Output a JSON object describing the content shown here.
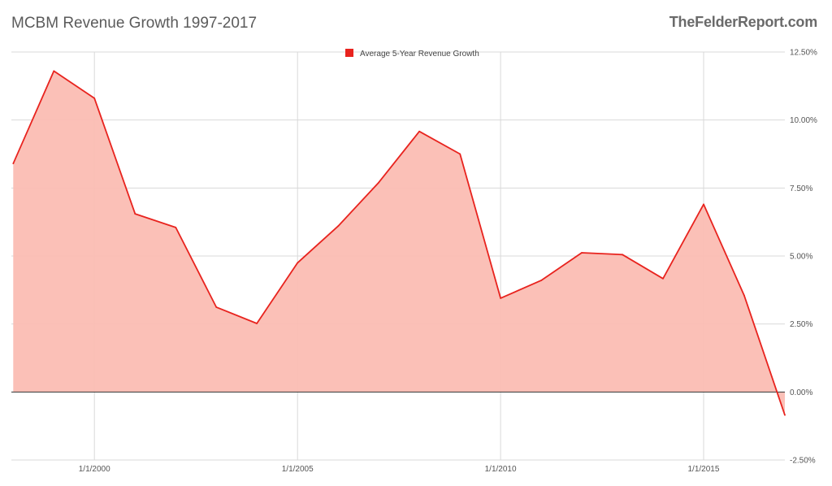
{
  "header": {
    "title": "MCBM Revenue Growth 1997-2017",
    "brand": "TheFelderReport.com"
  },
  "colors": {
    "line": "#e8231e",
    "fill": "#fbbdb3",
    "grid": "#d9d9d9",
    "zero_line": "#333333"
  },
  "chart_data": {
    "type": "area",
    "title": "MCBM Revenue Growth 1997-2017",
    "xlabel": "",
    "ylabel": "",
    "legend_position": "top-center",
    "grid": true,
    "x_tick_labels": [
      "1/1/2000",
      "1/1/2005",
      "1/1/2010",
      "1/1/2015"
    ],
    "y_tick_labels": [
      "12.50%",
      "10.00%",
      "7.50%",
      "5.00%",
      "2.50%",
      "0.00%",
      "-2.50%"
    ],
    "ylim": [
      -2.5,
      12.5
    ],
    "x": [
      "1998-01-01",
      "1999-01-01",
      "2000-01-01",
      "2001-01-01",
      "2002-01-01",
      "2003-01-01",
      "2004-01-01",
      "2005-01-01",
      "2006-01-01",
      "2007-01-01",
      "2008-01-01",
      "2009-01-01",
      "2010-01-01",
      "2011-01-01",
      "2012-01-01",
      "2013-01-01",
      "2014-01-01",
      "2015-01-01",
      "2016-01-01",
      "2017-01-01"
    ],
    "series": [
      {
        "name": "Average 5-Year Revenue Growth",
        "values": [
          8.4,
          11.8,
          10.8,
          6.55,
          6.05,
          3.12,
          2.52,
          4.75,
          6.1,
          7.7,
          9.58,
          8.75,
          3.45,
          4.1,
          5.12,
          5.05,
          4.17,
          6.9,
          3.55,
          -0.85
        ]
      }
    ]
  }
}
